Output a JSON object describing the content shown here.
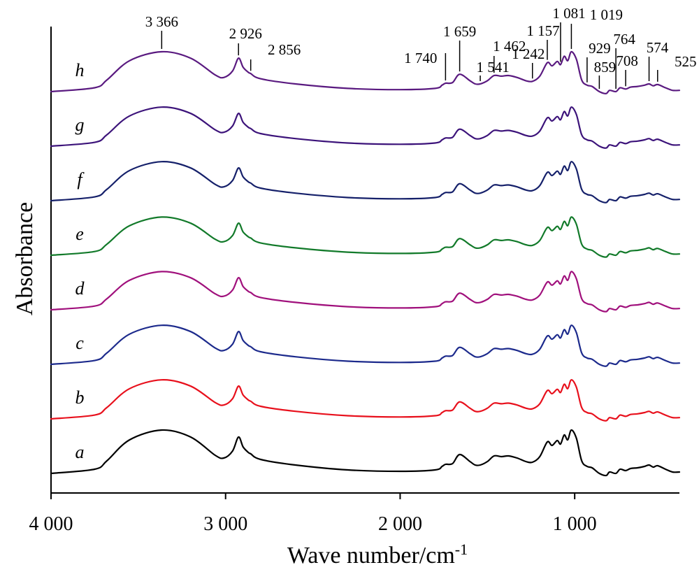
{
  "chart_data": {
    "type": "line",
    "title": "",
    "xlabel": "Wave number/cm",
    "xlabel_superscript": "-1",
    "ylabel": "Absorbance",
    "x_axis_reversed": true,
    "xlim": [
      4000,
      400
    ],
    "x_ticks": [
      {
        "value": 4000,
        "label": "4 000"
      },
      {
        "value": 3000,
        "label": "3 000"
      },
      {
        "value": 2000,
        "label": "2 000"
      },
      {
        "value": 1000,
        "label": "1 000"
      }
    ],
    "y_ticks": "none",
    "grid": false,
    "legend": "none (curves labelled a–h at left)",
    "stacked_offset": true,
    "x": [
      4000,
      3750,
      3680,
      3550,
      3366,
      3200,
      3060,
      3010,
      2960,
      2926,
      2900,
      2870,
      2856,
      2800,
      2600,
      2300,
      2000,
      1800,
      1760,
      1740,
      1700,
      1659,
      1600,
      1570,
      1541,
      1500,
      1462,
      1420,
      1380,
      1330,
      1280,
      1242,
      1200,
      1157,
      1130,
      1100,
      1081,
      1060,
      1040,
      1019,
      990,
      960,
      929,
      900,
      859,
      820,
      800,
      764,
      740,
      708,
      680,
      640,
      600,
      574,
      550,
      525,
      480,
      440,
      400
    ],
    "base_shape": [
      0.0,
      0.06,
      0.18,
      0.48,
      0.62,
      0.52,
      0.26,
      0.22,
      0.32,
      0.52,
      0.38,
      0.3,
      0.28,
      0.2,
      0.12,
      0.05,
      0.03,
      0.05,
      0.1,
      0.13,
      0.14,
      0.27,
      0.17,
      0.12,
      0.12,
      0.17,
      0.25,
      0.24,
      0.25,
      0.22,
      0.17,
      0.16,
      0.24,
      0.45,
      0.4,
      0.47,
      0.42,
      0.55,
      0.48,
      0.62,
      0.5,
      0.18,
      0.1,
      0.08,
      0.0,
      -0.03,
      0.02,
      0.0,
      0.06,
      0.04,
      0.07,
      0.08,
      0.1,
      0.12,
      0.09,
      0.11,
      0.06,
      0.02,
      0.02
    ],
    "series": [
      {
        "name": "a",
        "color": "#000000",
        "offset": 0,
        "scale": 1.0
      },
      {
        "name": "b",
        "color": "#e8101c",
        "offset": 1,
        "scale": 0.9
      },
      {
        "name": "c",
        "color": "#1c2a8c",
        "offset": 2,
        "scale": 0.9
      },
      {
        "name": "d",
        "color": "#a0107c",
        "offset": 3,
        "scale": 0.88
      },
      {
        "name": "e",
        "color": "#127a2a",
        "offset": 4,
        "scale": 0.88
      },
      {
        "name": "f",
        "color": "#15206a",
        "offset": 5,
        "scale": 0.9
      },
      {
        "name": "g",
        "color": "#3c137a",
        "offset": 6,
        "scale": 0.9
      },
      {
        "name": "h",
        "color": "#5a1a80",
        "offset": 7,
        "scale": 0.92
      }
    ],
    "annotations": [
      {
        "label": "3 366",
        "x": 3366
      },
      {
        "label": "2 926",
        "x": 2926
      },
      {
        "label": "2 856",
        "x": 2856
      },
      {
        "label": "1 740",
        "x": 1740
      },
      {
        "label": "1 659",
        "x": 1659
      },
      {
        "label": "1 541",
        "x": 1541
      },
      {
        "label": "1 462",
        "x": 1462
      },
      {
        "label": "1 242",
        "x": 1242
      },
      {
        "label": "1 157",
        "x": 1157
      },
      {
        "label": "1 081",
        "x": 1081
      },
      {
        "label": "1 019",
        "x": 1019
      },
      {
        "label": "929",
        "x": 929
      },
      {
        "label": "859",
        "x": 859
      },
      {
        "label": "764",
        "x": 764
      },
      {
        "label": "708",
        "x": 708
      },
      {
        "label": "574",
        "x": 574
      },
      {
        "label": "525",
        "x": 525
      }
    ]
  }
}
